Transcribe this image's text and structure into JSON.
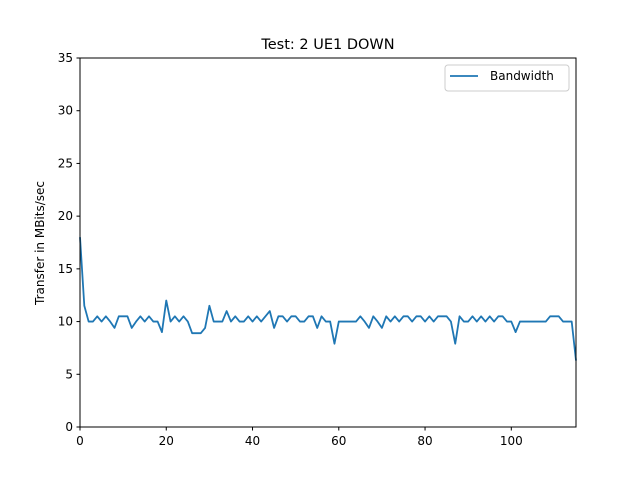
{
  "chart_data": {
    "type": "line",
    "title": "Test: 2 UE1 DOWN",
    "xlabel": "",
    "ylabel": "Transfer in MBits/sec",
    "xlim": [
      0,
      115
    ],
    "ylim": [
      0,
      35
    ],
    "xticks": [
      0,
      20,
      40,
      60,
      80,
      100
    ],
    "yticks": [
      0,
      5,
      10,
      15,
      20,
      25,
      30,
      35
    ],
    "grid": false,
    "legend_position": "top-right",
    "series": [
      {
        "name": "Bandwidth",
        "color": "#1f77b4",
        "x": [
          0,
          1,
          2,
          3,
          4,
          5,
          6,
          7,
          8,
          9,
          10,
          11,
          12,
          13,
          14,
          15,
          16,
          17,
          18,
          19,
          20,
          21,
          22,
          23,
          24,
          25,
          26,
          27,
          28,
          29,
          30,
          31,
          32,
          33,
          34,
          35,
          36,
          37,
          38,
          39,
          40,
          41,
          42,
          43,
          44,
          45,
          46,
          47,
          48,
          49,
          50,
          51,
          52,
          53,
          54,
          55,
          56,
          57,
          58,
          59,
          60,
          61,
          62,
          63,
          64,
          65,
          66,
          67,
          68,
          69,
          70,
          71,
          72,
          73,
          74,
          75,
          76,
          77,
          78,
          79,
          80,
          81,
          82,
          83,
          84,
          85,
          86,
          87,
          88,
          89,
          90,
          91,
          92,
          93,
          94,
          95,
          96,
          97,
          98,
          99,
          100,
          101,
          102,
          103,
          104,
          105,
          106,
          107,
          108,
          109,
          110,
          111,
          112,
          113,
          114,
          115
        ],
        "values": [
          18,
          11.5,
          10,
          10,
          10.5,
          10,
          10.5,
          10,
          9.4,
          10.5,
          10.5,
          10.5,
          9.4,
          10,
          10.5,
          10,
          10.5,
          10,
          10,
          9,
          12,
          10,
          10.5,
          10,
          10.5,
          10,
          8.9,
          8.9,
          8.9,
          9.4,
          11.5,
          10,
          10,
          10,
          11,
          10,
          10.5,
          10,
          10,
          10.5,
          10,
          10.5,
          10,
          10.5,
          11,
          9.4,
          10.5,
          10.5,
          10,
          10.5,
          10.5,
          10,
          10,
          10.5,
          10.5,
          9.4,
          10.5,
          10,
          10,
          7.9,
          10,
          10,
          10,
          10,
          10,
          10.5,
          10,
          9.4,
          10.5,
          10,
          9.4,
          10.5,
          10,
          10.5,
          10,
          10.5,
          10.5,
          10,
          10.5,
          10.5,
          10,
          10.5,
          10,
          10.5,
          10.5,
          10.5,
          10,
          7.9,
          10.5,
          10,
          10,
          10.5,
          10,
          10.5,
          10,
          10.5,
          10,
          10.5,
          10.5,
          10,
          10,
          9,
          10,
          10,
          10,
          10,
          10,
          10,
          10,
          10.5,
          10.5,
          10.5,
          10,
          10,
          10,
          6.3
        ]
      }
    ]
  }
}
